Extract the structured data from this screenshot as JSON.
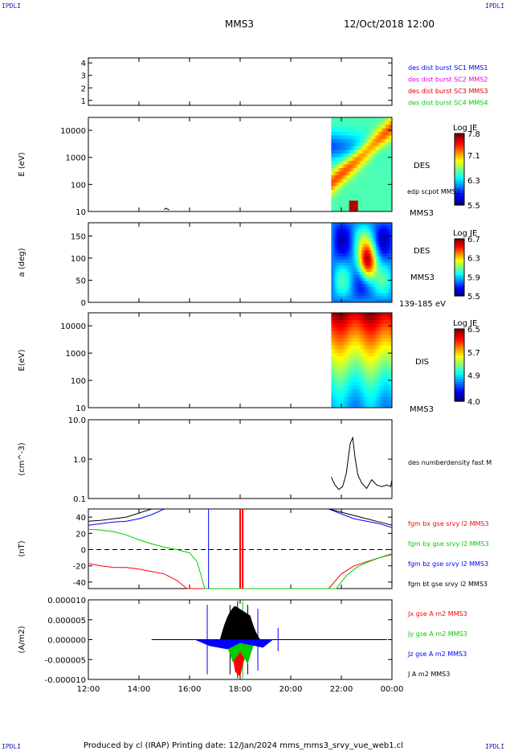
{
  "corners": {
    "tl": "IPDLI",
    "tr": "IPDLI",
    "bl": "IPDLI",
    "br": "IPDLI"
  },
  "header": {
    "spacecraft": "MMS3",
    "date": "12/Oct/2018 12:00"
  },
  "footer": "Produced by cl (IRAP)   Printing date: 12/Jan/2024   mms_mms3_srvy_vue_web1.cl",
  "chart_data": [
    {
      "type": "line",
      "panel": "spacecraft-indicator",
      "y_ticks": [
        "1",
        "2",
        "3",
        "4"
      ],
      "ylim": [
        0.6,
        4.4
      ],
      "legend": [
        {
          "label": "des dist burst SC1 MMS1",
          "color": "#0000ff"
        },
        {
          "label": "des dist burst SC2 MMS2",
          "color": "#dd00dd"
        },
        {
          "label": "des dist burst SC3 MMS3",
          "color": "#dd0000"
        },
        {
          "label": "des dist burst SC4 MMS4",
          "color": "#00cc00"
        }
      ],
      "series": []
    },
    {
      "type": "heatmap",
      "panel": "electron-energy-spectrogram",
      "ylabel": "E (eV)",
      "y_scale": "log",
      "ylim": [
        10,
        30000
      ],
      "y_ticks": [
        "10",
        "100",
        "1000",
        "10000"
      ],
      "data_start_hour": 21.6,
      "right_labels": [
        "DES",
        "MMS3"
      ],
      "overlay_label": "edp scpot MMS3",
      "colorbar": {
        "title": "Log JE",
        "ticks": [
          "7.8",
          "7.1",
          "6.3",
          "5.5"
        ],
        "range": [
          5.5,
          7.8
        ]
      }
    },
    {
      "type": "heatmap",
      "panel": "electron-pitch-angle",
      "ylabel": "a (deg)",
      "ylim": [
        0,
        180
      ],
      "y_ticks": [
        "0",
        "50",
        "100",
        "150"
      ],
      "data_start_hour": 21.6,
      "right_labels": [
        "DES",
        "MMS3",
        "139-185 eV"
      ],
      "colorbar": {
        "title": "Log JE",
        "ticks": [
          "6.7",
          "6.3",
          "5.9",
          "5.5"
        ],
        "range": [
          5.5,
          6.7
        ]
      }
    },
    {
      "type": "heatmap",
      "panel": "ion-energy-spectrogram",
      "ylabel": "E(eV)",
      "y_scale": "log",
      "ylim": [
        10,
        30000
      ],
      "y_ticks": [
        "10",
        "100",
        "1000",
        "10000"
      ],
      "data_start_hour": 21.6,
      "right_labels": [
        "DIS",
        "MMS3"
      ],
      "colorbar": {
        "title": "Log JE",
        "ticks": [
          "6.5",
          "5.7",
          "4.9",
          "4.0"
        ],
        "range": [
          4.0,
          6.5
        ]
      }
    },
    {
      "type": "line",
      "panel": "electron-density",
      "ylabel": "(cm^-3)",
      "y_scale": "log",
      "ylim": [
        0.1,
        10
      ],
      "y_ticks": [
        "0.1",
        "1.0",
        "10.0"
      ],
      "series": [
        {
          "name": "des numberdensity fast M",
          "color": "#000000",
          "x": [
            21.6,
            21.75,
            21.9,
            22.05,
            22.2,
            22.35,
            22.45,
            22.55,
            22.65,
            22.8,
            23.0,
            23.2,
            23.4,
            23.6,
            23.8,
            23.95,
            24.0
          ],
          "y": [
            0.35,
            0.22,
            0.17,
            0.2,
            0.45,
            2.5,
            3.5,
            1.0,
            0.4,
            0.25,
            0.18,
            0.3,
            0.22,
            0.2,
            0.22,
            0.2,
            0.3
          ]
        }
      ]
    },
    {
      "type": "line",
      "panel": "magnetic-field",
      "ylabel": "(nT)",
      "ylim": [
        -48,
        50
      ],
      "y_ticks": [
        "-40",
        "-20",
        "0",
        "20",
        "40"
      ],
      "series": [
        {
          "name": "fgm bx gse srvy l2 MMS3",
          "color": "#ff0000",
          "x": [
            12.0,
            12.5,
            13.0,
            13.5,
            14.0,
            14.5,
            15.0,
            15.5,
            15.9,
            21.5,
            22.0,
            22.5,
            23.0,
            23.5,
            24.0
          ],
          "y": [
            -17,
            -20,
            -22,
            -22,
            -24,
            -27,
            -30,
            -38,
            -48,
            -48,
            -30,
            -20,
            -15,
            -10,
            -6
          ]
        },
        {
          "name": "fgm by gse srvy l2 MMS3",
          "color": "#00cc00",
          "x": [
            12.0,
            12.5,
            13.0,
            13.5,
            14.0,
            14.5,
            15.0,
            15.5,
            16.0,
            16.3,
            16.6,
            21.8,
            22.2,
            22.6,
            23.0,
            23.5,
            24.0
          ],
          "y": [
            25,
            24,
            22,
            18,
            12,
            7,
            3,
            0,
            -4,
            -15,
            -48,
            -48,
            -32,
            -22,
            -16,
            -10,
            -5
          ]
        },
        {
          "name": "fgm bz gse srvy l2 MMS3",
          "color": "#0000ff",
          "x": [
            12.0,
            12.5,
            13.0,
            13.5,
            14.0,
            14.5,
            15.0,
            21.5,
            22.0,
            22.5,
            23.0,
            23.5,
            24.0
          ],
          "y": [
            30,
            32,
            34,
            35,
            38,
            43,
            50,
            50,
            44,
            38,
            35,
            32,
            27
          ]
        },
        {
          "name": "fgm bt gse srvy l2 MMS3",
          "color": "#000000",
          "x": [
            12.0,
            12.5,
            13.0,
            13.5,
            14.0,
            14.5,
            21.5,
            22.0,
            22.5,
            23.0,
            23.5,
            24.0
          ],
          "y": [
            35,
            36,
            38,
            40,
            45,
            50,
            50,
            46,
            42,
            38,
            34,
            30
          ]
        }
      ]
    },
    {
      "type": "line",
      "panel": "current-density",
      "ylabel": "(A/m2)",
      "ylim": [
        -1e-05,
        1e-05
      ],
      "y_ticks": [
        "-0.000010",
        "-0.000005",
        "0.000000",
        "0.000005",
        "0.000010"
      ],
      "series": [
        {
          "name": "Jx gse A m2 MMS3",
          "color": "#ff0000"
        },
        {
          "name": "Jy gse A m2 MMS3",
          "color": "#00cc00"
        },
        {
          "name": "Jz gse A m2 MMS3",
          "color": "#0000ff"
        },
        {
          "name": "J A m2 MMS3",
          "color": "#000000"
        }
      ]
    }
  ],
  "x_axis": {
    "hours": [
      12,
      14,
      16,
      18,
      20,
      22,
      24
    ],
    "tick_labels": [
      "12:00",
      "14:00",
      "16:00",
      "18:00",
      "20:00",
      "22:00",
      "00:00"
    ]
  }
}
